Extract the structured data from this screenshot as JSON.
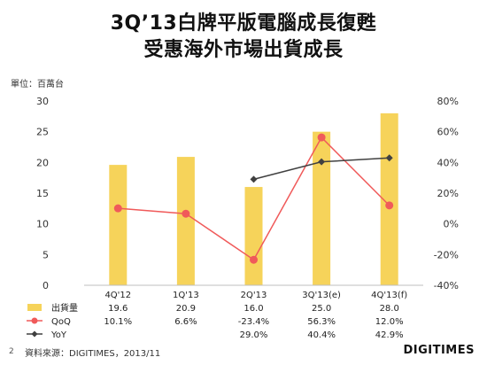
{
  "title_line1": "3Q’13白牌平版電腦成長復甦",
  "title_line2": "受惠海外市場出貨成長",
  "unit_label": "單位：百萬台",
  "source": "資料來源：DIGITIMES，2013/11",
  "page_number": "2",
  "logo": "DIGITIMES",
  "chart_data": {
    "type": "bar",
    "categories": [
      "4Q'12",
      "1Q'13",
      "2Q'13",
      "3Q'13(e)",
      "4Q'13(f)"
    ],
    "ylim": [
      0,
      30
    ],
    "y_ticks": [
      0,
      5,
      10,
      15,
      20,
      25,
      30
    ],
    "y2lim": [
      -40,
      80
    ],
    "y2_ticks": [
      "-40%",
      "-20%",
      "0%",
      "20%",
      "40%",
      "60%",
      "80%"
    ],
    "y2_tick_values": [
      -40,
      -20,
      0,
      20,
      40,
      60,
      80
    ],
    "series": [
      {
        "name": "出貨量",
        "type": "bar",
        "axis": "left",
        "color": "#f6d35a",
        "values": [
          19.6,
          20.9,
          16.0,
          25.0,
          28.0
        ],
        "labels": [
          "19.6",
          "20.9",
          "16.0",
          "25.0",
          "28.0"
        ]
      },
      {
        "name": "QoQ",
        "type": "line",
        "axis": "right",
        "color": "#f05a5a",
        "values": [
          10.1,
          6.6,
          -23.4,
          56.3,
          12.0
        ],
        "labels": [
          "10.1%",
          "6.6%",
          "-23.4%",
          "56.3%",
          "12.0%"
        ]
      },
      {
        "name": "YoY",
        "type": "line",
        "axis": "right",
        "color": "#404040",
        "values": [
          null,
          null,
          29.0,
          40.4,
          42.9
        ],
        "labels": [
          "",
          "",
          "29.0%",
          "40.4%",
          "42.9%"
        ]
      }
    ]
  }
}
